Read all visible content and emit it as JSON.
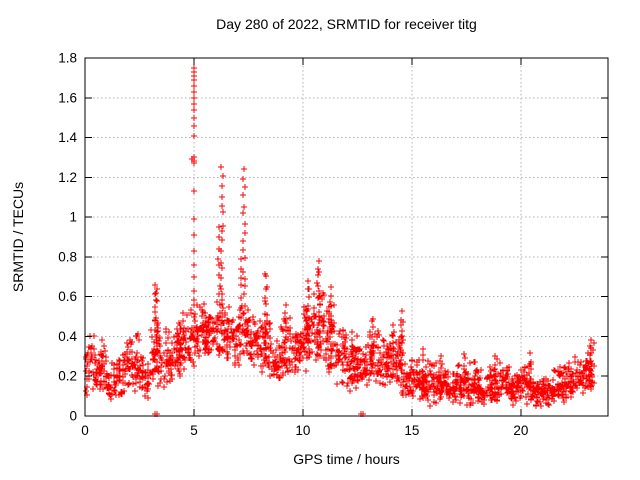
{
  "chart_data": {
    "type": "scatter",
    "title": "Day 280 of 2022, SRMTID for receiver titg",
    "xlabel": "GPS time / hours",
    "ylabel": "SRMTID / TECUs",
    "xlim": [
      0,
      24
    ],
    "ylim": [
      0,
      1.8
    ],
    "xticks": {
      "values": [
        0,
        5,
        10,
        15,
        20
      ],
      "labels": [
        "0",
        "5",
        "10",
        "15",
        "20"
      ]
    },
    "yticks": {
      "values": [
        0,
        0.2,
        0.4,
        0.6,
        0.8,
        1.0,
        1.2,
        1.4,
        1.6,
        1.8
      ],
      "labels": [
        "0",
        "0.2",
        "0.4",
        "0.6",
        "0.8",
        "1",
        "1.2",
        "1.4",
        "1.6",
        "1.8"
      ]
    },
    "grid": true,
    "legend": "none",
    "marker": "+",
    "marker_color": "#ff0000",
    "grid_color": "#b0b0b0",
    "axis_color": "#000000",
    "background_color": "#ffffff",
    "notable_peaks": [
      {
        "x": 5.0,
        "y": 1.75
      },
      {
        "x": 6.3,
        "y": 1.25
      },
      {
        "x": 7.3,
        "y": 1.25
      },
      {
        "x": 10.7,
        "y": 0.78
      },
      {
        "x": 8.3,
        "y": 0.72
      },
      {
        "x": 3.3,
        "y": 0.67
      },
      {
        "x": 14.5,
        "y": 0.55
      },
      {
        "x": 23.2,
        "y": 0.38
      }
    ],
    "outlier_points": [
      [
        3.2,
        0.012
      ],
      [
        3.29,
        0.012
      ],
      [
        12.65,
        0.012
      ],
      [
        12.78,
        0.012
      ]
    ],
    "main_spike_points": [
      [
        5.0,
        1.75
      ],
      [
        4.98,
        1.73
      ],
      [
        5.02,
        1.71
      ],
      [
        5.0,
        1.69
      ],
      [
        4.99,
        1.66
      ],
      [
        5.01,
        1.63
      ],
      [
        5.0,
        1.6
      ],
      [
        4.98,
        1.57
      ],
      [
        5.0,
        1.54
      ],
      [
        5.02,
        1.5
      ],
      [
        5.0,
        1.46
      ],
      [
        5.0,
        1.41
      ],
      [
        4.98,
        1.3
      ],
      [
        5.0,
        1.28
      ],
      [
        5.02,
        1.27
      ],
      [
        4.9,
        1.29
      ],
      [
        5.0,
        1.13
      ],
      [
        5.0,
        0.99
      ],
      [
        4.99,
        0.91
      ],
      [
        5.0,
        0.83
      ],
      [
        5.01,
        0.76
      ],
      [
        5.0,
        0.7
      ],
      [
        5.0,
        0.63
      ],
      [
        4.99,
        0.56
      ],
      [
        5.0,
        0.5
      ],
      [
        5.0,
        0.44
      ],
      [
        5.0,
        0.38
      ]
    ],
    "spike_columns": [
      [
        3.27,
        0.25,
        0.67,
        22,
        0.08
      ],
      [
        4.3,
        0.2,
        0.48,
        14,
        0.07
      ],
      [
        5.55,
        0.32,
        0.52,
        12,
        0.06
      ],
      [
        6.15,
        0.5,
        0.95,
        10,
        0.04
      ],
      [
        6.3,
        0.55,
        1.25,
        16,
        0.05
      ],
      [
        7.15,
        0.45,
        0.8,
        8,
        0.04
      ],
      [
        7.3,
        0.55,
        1.25,
        16,
        0.05
      ],
      [
        8.3,
        0.3,
        0.72,
        16,
        0.06
      ],
      [
        9.2,
        0.25,
        0.56,
        10,
        0.05
      ],
      [
        10.2,
        0.3,
        0.68,
        14,
        0.07
      ],
      [
        10.75,
        0.3,
        0.78,
        18,
        0.07
      ],
      [
        11.3,
        0.25,
        0.65,
        12,
        0.06
      ],
      [
        12.3,
        0.2,
        0.42,
        8,
        0.05
      ],
      [
        13.2,
        0.2,
        0.5,
        10,
        0.06
      ],
      [
        14.15,
        0.2,
        0.47,
        8,
        0.05
      ],
      [
        14.55,
        0.25,
        0.54,
        14,
        0.05
      ],
      [
        15.5,
        0.1,
        0.34,
        8,
        0.05
      ],
      [
        16.3,
        0.1,
        0.3,
        8,
        0.05
      ],
      [
        17.4,
        0.1,
        0.32,
        8,
        0.05
      ],
      [
        18.8,
        0.08,
        0.3,
        8,
        0.05
      ],
      [
        20.45,
        0.08,
        0.32,
        6,
        0.05
      ],
      [
        23.2,
        0.14,
        0.38,
        12,
        0.06
      ]
    ],
    "envelope_segments": [
      [
        0.0,
        0.5,
        0.1,
        0.42,
        40
      ],
      [
        0.5,
        1.0,
        0.08,
        0.4,
        40
      ],
      [
        1.0,
        1.5,
        0.05,
        0.3,
        38
      ],
      [
        1.5,
        2.0,
        0.08,
        0.42,
        38
      ],
      [
        2.0,
        2.5,
        0.1,
        0.46,
        40
      ],
      [
        2.5,
        3.0,
        0.08,
        0.34,
        36
      ],
      [
        3.0,
        3.5,
        0.14,
        0.52,
        40
      ],
      [
        3.5,
        4.0,
        0.12,
        0.46,
        38
      ],
      [
        4.0,
        4.5,
        0.16,
        0.5,
        40
      ],
      [
        4.5,
        5.0,
        0.22,
        0.55,
        40
      ],
      [
        5.0,
        5.5,
        0.28,
        0.6,
        40
      ],
      [
        5.5,
        6.0,
        0.28,
        0.56,
        40
      ],
      [
        6.0,
        6.5,
        0.28,
        0.62,
        40
      ],
      [
        6.5,
        7.0,
        0.24,
        0.56,
        40
      ],
      [
        7.0,
        7.5,
        0.25,
        0.62,
        40
      ],
      [
        7.5,
        8.0,
        0.24,
        0.6,
        40
      ],
      [
        8.0,
        8.5,
        0.2,
        0.55,
        40
      ],
      [
        8.5,
        9.0,
        0.16,
        0.4,
        38
      ],
      [
        9.0,
        9.5,
        0.18,
        0.55,
        40
      ],
      [
        9.5,
        10.0,
        0.2,
        0.48,
        40
      ],
      [
        10.0,
        10.5,
        0.22,
        0.65,
        42
      ],
      [
        10.5,
        11.0,
        0.24,
        0.7,
        42
      ],
      [
        11.0,
        11.5,
        0.18,
        0.6,
        40
      ],
      [
        11.5,
        12.0,
        0.14,
        0.5,
        40
      ],
      [
        12.0,
        12.5,
        0.12,
        0.42,
        40
      ],
      [
        12.5,
        13.0,
        0.12,
        0.4,
        40
      ],
      [
        13.0,
        13.5,
        0.14,
        0.5,
        40
      ],
      [
        13.5,
        14.0,
        0.12,
        0.42,
        40
      ],
      [
        14.0,
        14.5,
        0.12,
        0.48,
        40
      ],
      [
        14.5,
        15.0,
        0.08,
        0.3,
        40
      ],
      [
        15.0,
        15.5,
        0.05,
        0.33,
        40
      ],
      [
        15.5,
        16.0,
        0.04,
        0.28,
        40
      ],
      [
        16.0,
        16.5,
        0.05,
        0.3,
        40
      ],
      [
        16.5,
        17.0,
        0.04,
        0.26,
        40
      ],
      [
        17.0,
        17.5,
        0.05,
        0.32,
        40
      ],
      [
        17.5,
        18.0,
        0.04,
        0.28,
        40
      ],
      [
        18.0,
        18.5,
        0.04,
        0.25,
        40
      ],
      [
        18.5,
        19.0,
        0.06,
        0.3,
        40
      ],
      [
        19.0,
        19.5,
        0.08,
        0.28,
        40
      ],
      [
        19.5,
        20.0,
        0.05,
        0.22,
        38
      ],
      [
        20.0,
        20.5,
        0.05,
        0.3,
        40
      ],
      [
        20.5,
        21.0,
        0.04,
        0.2,
        40
      ],
      [
        21.0,
        21.5,
        0.05,
        0.22,
        40
      ],
      [
        21.5,
        22.0,
        0.06,
        0.26,
        40
      ],
      [
        22.0,
        22.5,
        0.08,
        0.28,
        40
      ],
      [
        22.5,
        23.0,
        0.1,
        0.32,
        40
      ],
      [
        23.0,
        23.35,
        0.12,
        0.38,
        30
      ]
    ],
    "layout": {
      "grid_on": true,
      "legend_position": "none",
      "seed": 280
    }
  }
}
